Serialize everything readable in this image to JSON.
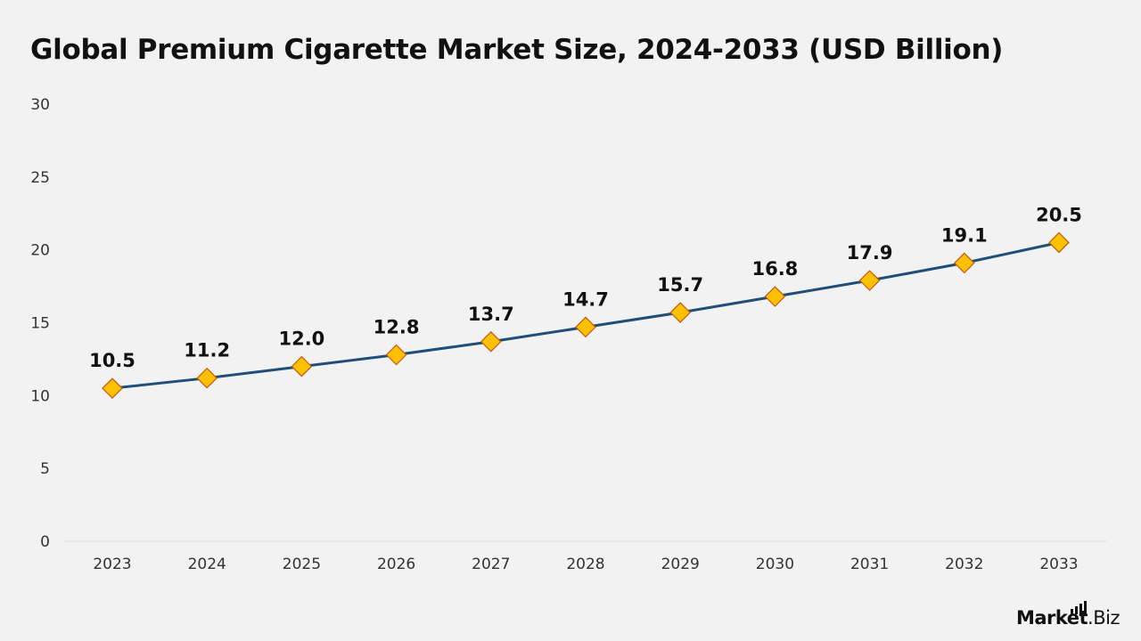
{
  "title": "Global Premium Cigarette Market Size, 2024-2033 (USD Billion)",
  "logo": {
    "brand": "Market",
    "tld": ".Biz"
  },
  "chart_data": {
    "type": "line",
    "title": "Global Premium Cigarette Market Size, 2024-2033 (USD Billion)",
    "xlabel": "",
    "ylabel": "",
    "categories": [
      "2023",
      "2024",
      "2025",
      "2026",
      "2027",
      "2028",
      "2029",
      "2030",
      "2031",
      "2032",
      "2033"
    ],
    "series": [
      {
        "values": [
          10.5,
          11.2,
          12.0,
          12.8,
          13.7,
          14.7,
          15.7,
          16.8,
          17.9,
          19.1,
          20.5
        ]
      }
    ],
    "data_labels": [
      "10.5",
      "11.2",
      "12.0",
      "12.8",
      "13.7",
      "14.7",
      "15.7",
      "16.8",
      "17.9",
      "19.1",
      "20.5"
    ],
    "ylim": [
      0,
      30
    ],
    "yticks": [
      0,
      5,
      10,
      15,
      20,
      25,
      30
    ],
    "grid": false,
    "legend": "none",
    "colors": {
      "line": "#1f4e79",
      "marker_fill": "#ffc000",
      "marker_stroke": "#c55a11",
      "axis": "#d9d9d9",
      "text": "#111111"
    }
  }
}
